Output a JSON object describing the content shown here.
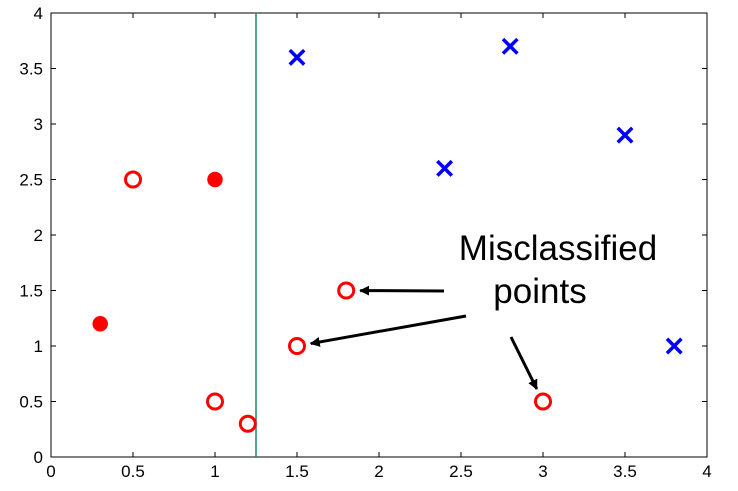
{
  "chart_data": {
    "type": "scatter",
    "title": "",
    "xlabel": "",
    "ylabel": "",
    "xlim": [
      0,
      4
    ],
    "ylim": [
      0,
      4
    ],
    "x_ticks": [
      "0",
      "0.5",
      "1",
      "1.5",
      "2",
      "2.5",
      "3",
      "3.5",
      "4"
    ],
    "y_ticks": [
      "0",
      "0.5",
      "1",
      "1.5",
      "2",
      "2.5",
      "3",
      "3.5",
      "4"
    ],
    "grid": false,
    "legend": "none",
    "series": [
      {
        "marker": "open-circle",
        "color": "#ff0000",
        "points": [
          {
            "x": 0.5,
            "y": 2.5
          },
          {
            "x": 1.0,
            "y": 0.5
          },
          {
            "x": 1.2,
            "y": 0.3
          },
          {
            "x": 1.5,
            "y": 1.0
          },
          {
            "x": 1.8,
            "y": 1.5
          },
          {
            "x": 3.0,
            "y": 0.5
          }
        ]
      },
      {
        "marker": "filled-circle",
        "color": "#ff0000",
        "points": [
          {
            "x": 0.3,
            "y": 1.2
          },
          {
            "x": 1.0,
            "y": 2.5
          }
        ]
      },
      {
        "marker": "cross",
        "color": "#0000ff",
        "points": [
          {
            "x": 1.5,
            "y": 3.6
          },
          {
            "x": 2.4,
            "y": 2.6
          },
          {
            "x": 2.8,
            "y": 3.7
          },
          {
            "x": 3.5,
            "y": 2.9
          },
          {
            "x": 3.8,
            "y": 1.0
          }
        ]
      }
    ],
    "decision_boundary": {
      "orientation": "vertical",
      "x": 1.25,
      "color": "#1a8a6a"
    },
    "annotation": {
      "lines": [
        "Misclassified",
        "points"
      ],
      "targets": [
        {
          "x": 1.8,
          "y": 1.5
        },
        {
          "x": 1.5,
          "y": 1.0
        },
        {
          "x": 3.0,
          "y": 0.5
        }
      ]
    }
  }
}
